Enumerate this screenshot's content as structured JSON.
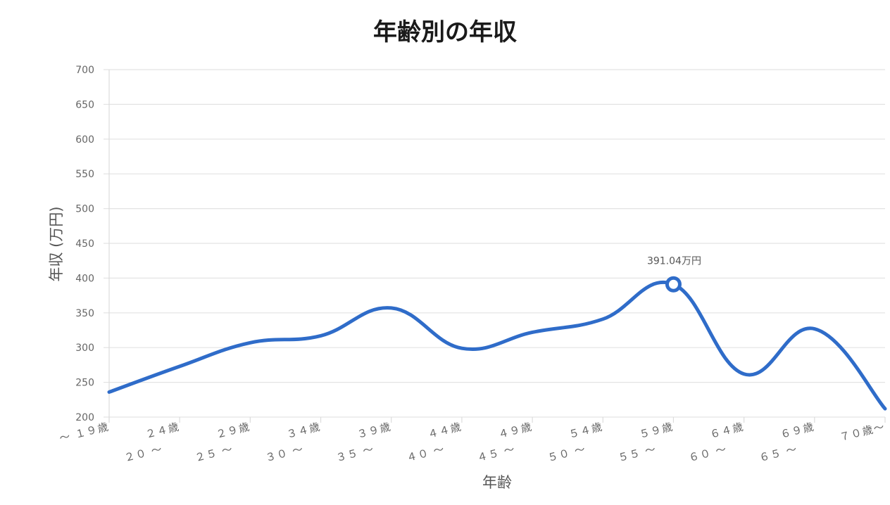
{
  "chart_data": {
    "type": "line",
    "title": "年齢別の年収",
    "xlabel": "年齢",
    "ylabel": "年収 (万円)",
    "ylim": [
      200,
      700
    ],
    "yticks": [
      200,
      250,
      300,
      350,
      400,
      450,
      500,
      550,
      600,
      650,
      700
    ],
    "grid": true,
    "categories": [
      "～１９歳",
      "２０～２４歳",
      "２５～２９歳",
      "３０～３４歳",
      "３５～３９歳",
      "４０～４４歳",
      "４５～４９歳",
      "５０～５４歳",
      "５５～５９歳",
      "６０～６４歳",
      "６５～６９歳",
      "７０歳～"
    ],
    "category_labels": [
      {
        "line1": "～ １９歳",
        "line2": ""
      },
      {
        "line1": "２４歳",
        "line2": "２０ ～"
      },
      {
        "line1": "２９歳",
        "line2": "２５ ～"
      },
      {
        "line1": "３４歳",
        "line2": "３０ ～"
      },
      {
        "line1": "３９歳",
        "line2": "３５ ～"
      },
      {
        "line1": "４４歳",
        "line2": "４０ ～"
      },
      {
        "line1": "４９歳",
        "line2": "４５ ～"
      },
      {
        "line1": "５４歳",
        "line2": "５０ ～"
      },
      {
        "line1": "５９歳",
        "line2": "５５ ～"
      },
      {
        "line1": "６４歳",
        "line2": "６０ ～"
      },
      {
        "line1": "６９歳",
        "line2": "６５ ～"
      },
      {
        "line1": "７０歳～",
        "line2": ""
      }
    ],
    "series": [
      {
        "color": "#2f6cc9",
        "values": [
          236,
          273,
          307,
          317,
          357,
          299,
          322,
          341,
          391.04,
          262,
          327,
          212
        ]
      }
    ],
    "highlight": {
      "index": 8,
      "label": "391.04万円"
    }
  }
}
